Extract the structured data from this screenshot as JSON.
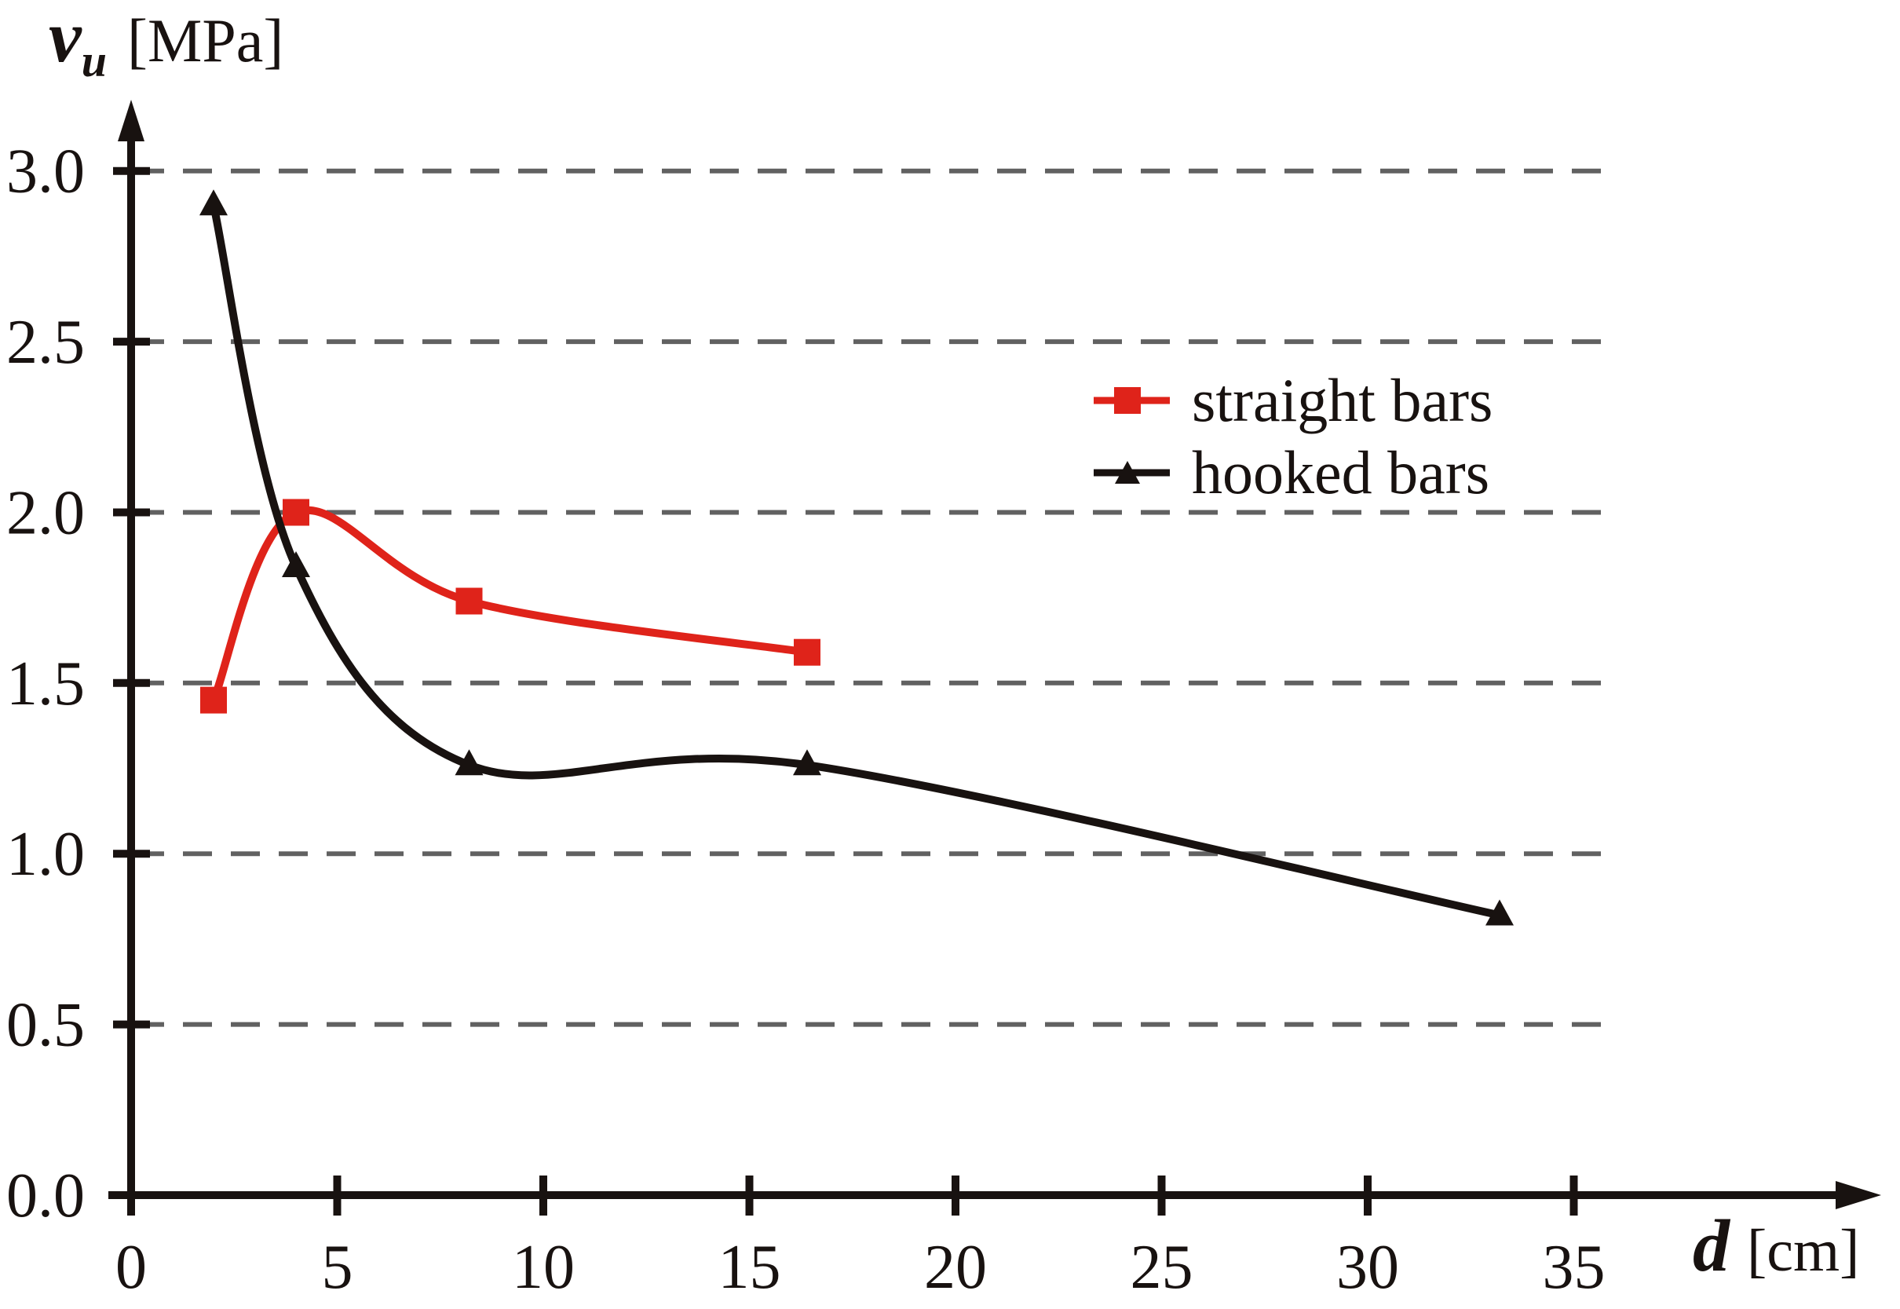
{
  "page": {
    "background": "#ffffff"
  },
  "chart_data": {
    "type": "line",
    "y_axis": {
      "symbol": "v",
      "subscript": "u",
      "unit": "[MPa]",
      "range": [
        0.0,
        3.2
      ],
      "ticks": [
        {
          "value": 0.0,
          "label": "0.0"
        },
        {
          "value": 0.5,
          "label": "0.5"
        },
        {
          "value": 1.0,
          "label": "1.0"
        },
        {
          "value": 1.5,
          "label": "1.5"
        },
        {
          "value": 2.0,
          "label": "2.0"
        },
        {
          "value": 2.5,
          "label": "2.5"
        },
        {
          "value": 3.0,
          "label": "3.0"
        }
      ]
    },
    "x_axis": {
      "symbol": "d",
      "unit": "[cm]",
      "range": [
        0,
        42
      ],
      "ticks": [
        {
          "value": 0,
          "label": "0"
        },
        {
          "value": 5,
          "label": "5"
        },
        {
          "value": 10,
          "label": "10"
        },
        {
          "value": 15,
          "label": "15"
        },
        {
          "value": 20,
          "label": "20"
        },
        {
          "value": 25,
          "label": "25"
        },
        {
          "value": 30,
          "label": "30"
        },
        {
          "value": 35,
          "label": "35"
        }
      ]
    },
    "grid": {
      "show": true,
      "style": "dashed",
      "color": "#616161",
      "at_values": [
        0.5,
        1.0,
        1.5,
        2.0,
        2.5,
        3.0
      ]
    },
    "axis_color": "#181210",
    "text_color": "#181210",
    "series": [
      {
        "name": "straight bars",
        "color": "#df231a",
        "marker": "square",
        "points": [
          [
            2.0,
            1.45
          ],
          [
            4.0,
            2.0
          ],
          [
            8.2,
            1.74
          ],
          [
            16.4,
            1.59
          ]
        ]
      },
      {
        "name": "hooked bars",
        "color": "#181210",
        "marker": "triangle",
        "points": [
          [
            2.0,
            2.9
          ],
          [
            4.0,
            1.84
          ],
          [
            8.2,
            1.26
          ],
          [
            16.4,
            1.26
          ],
          [
            33.2,
            0.82
          ]
        ]
      }
    ],
    "legend": {
      "position": "inside upper right",
      "entries": [
        "straight bars",
        "hooked bars"
      ]
    }
  }
}
